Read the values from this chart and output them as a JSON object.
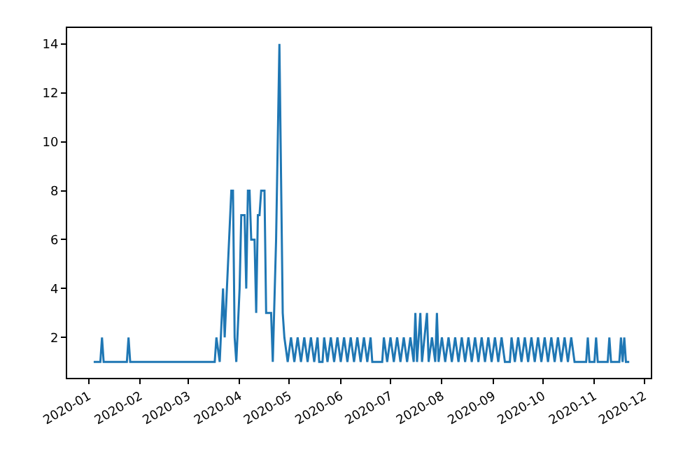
{
  "chart_data": {
    "type": "line",
    "color": "#1f77b4",
    "grid": false,
    "marker": "none",
    "line_style": "solid",
    "x": [
      "2020-01-04",
      "2020-01-08",
      "2020-01-09",
      "2020-01-10",
      "2020-01-24",
      "2020-01-25",
      "2020-01-26",
      "2020-03-17",
      "2020-03-18",
      "2020-03-20",
      "2020-03-22",
      "2020-03-23",
      "2020-03-25",
      "2020-03-27",
      "2020-03-28",
      "2020-03-29",
      "2020-03-30",
      "2020-04-01",
      "2020-04-02",
      "2020-04-04",
      "2020-04-05",
      "2020-04-06",
      "2020-04-07",
      "2020-04-08",
      "2020-04-10",
      "2020-04-11",
      "2020-04-12",
      "2020-04-13",
      "2020-04-14",
      "2020-04-16",
      "2020-04-17",
      "2020-04-20",
      "2020-04-21",
      "2020-04-23",
      "2020-04-25",
      "2020-04-27",
      "2020-04-28",
      "2020-04-30",
      "2020-05-02",
      "2020-05-04",
      "2020-05-06",
      "2020-05-08",
      "2020-05-10",
      "2020-05-12",
      "2020-05-14",
      "2020-05-16",
      "2020-05-18",
      "2020-05-19",
      "2020-05-21",
      "2020-05-22",
      "2020-05-24",
      "2020-05-26",
      "2020-05-28",
      "2020-05-30",
      "2020-06-01",
      "2020-06-03",
      "2020-06-05",
      "2020-06-07",
      "2020-06-09",
      "2020-06-11",
      "2020-06-13",
      "2020-06-15",
      "2020-06-17",
      "2020-06-19",
      "2020-06-20",
      "2020-06-26",
      "2020-06-27",
      "2020-06-29",
      "2020-07-01",
      "2020-07-03",
      "2020-07-05",
      "2020-07-07",
      "2020-07-09",
      "2020-07-11",
      "2020-07-13",
      "2020-07-15",
      "2020-07-16",
      "2020-07-17",
      "2020-07-19",
      "2020-07-20",
      "2020-07-23",
      "2020-07-24",
      "2020-07-26",
      "2020-07-28",
      "2020-07-29",
      "2020-07-30",
      "2020-08-01",
      "2020-08-03",
      "2020-08-05",
      "2020-08-07",
      "2020-08-09",
      "2020-08-11",
      "2020-08-13",
      "2020-08-15",
      "2020-08-17",
      "2020-08-19",
      "2020-08-21",
      "2020-08-23",
      "2020-08-25",
      "2020-08-27",
      "2020-08-29",
      "2020-08-31",
      "2020-09-02",
      "2020-09-04",
      "2020-09-06",
      "2020-09-08",
      "2020-09-11",
      "2020-09-12",
      "2020-09-14",
      "2020-09-16",
      "2020-09-18",
      "2020-09-20",
      "2020-09-22",
      "2020-09-24",
      "2020-09-26",
      "2020-09-28",
      "2020-09-30",
      "2020-10-02",
      "2020-10-04",
      "2020-10-06",
      "2020-10-08",
      "2020-10-10",
      "2020-10-12",
      "2020-10-14",
      "2020-10-16",
      "2020-10-18",
      "2020-10-20",
      "2020-10-27",
      "2020-10-28",
      "2020-10-29",
      "2020-11-01",
      "2020-11-02",
      "2020-11-03",
      "2020-11-09",
      "2020-11-10",
      "2020-11-11",
      "2020-11-16",
      "2020-11-17",
      "2020-11-18",
      "2020-11-19",
      "2020-11-20",
      "2020-11-22"
    ],
    "values": [
      1,
      1,
      2,
      1,
      1,
      2,
      1,
      1,
      2,
      1,
      4,
      2,
      5,
      8,
      8,
      2,
      1,
      4,
      7,
      7,
      4,
      8,
      8,
      6,
      6,
      3,
      7,
      7,
      8,
      8,
      3,
      3,
      1,
      6,
      14,
      3,
      2,
      1,
      2,
      1,
      2,
      1,
      2,
      1,
      2,
      1,
      2,
      1,
      1,
      2,
      1,
      2,
      1,
      2,
      1,
      2,
      1,
      2,
      1,
      2,
      1,
      2,
      1,
      2,
      1,
      1,
      2,
      1,
      2,
      1,
      2,
      1,
      2,
      1,
      2,
      1,
      3,
      1,
      3,
      1,
      3,
      1,
      2,
      1,
      3,
      1,
      2,
      1,
      2,
      1,
      2,
      1,
      2,
      1,
      2,
      1,
      2,
      1,
      2,
      1,
      2,
      1,
      2,
      1,
      2,
      1,
      1,
      2,
      1,
      2,
      1,
      2,
      1,
      2,
      1,
      2,
      1,
      2,
      1,
      2,
      1,
      2,
      1,
      2,
      1,
      2,
      1,
      1,
      2,
      1,
      1,
      2,
      1,
      1,
      2,
      1,
      1,
      2,
      1,
      2,
      1,
      1
    ],
    "xlim": [
      "2019-12-19",
      "2020-12-05"
    ],
    "xticks": [
      {
        "value": "2020-01-01",
        "label": "2020-01"
      },
      {
        "value": "2020-02-01",
        "label": "2020-02"
      },
      {
        "value": "2020-03-01",
        "label": "2020-03"
      },
      {
        "value": "2020-04-01",
        "label": "2020-04"
      },
      {
        "value": "2020-05-01",
        "label": "2020-05"
      },
      {
        "value": "2020-06-01",
        "label": "2020-06"
      },
      {
        "value": "2020-07-01",
        "label": "2020-07"
      },
      {
        "value": "2020-08-01",
        "label": "2020-08"
      },
      {
        "value": "2020-09-01",
        "label": "2020-09"
      },
      {
        "value": "2020-10-01",
        "label": "2020-10"
      },
      {
        "value": "2020-11-01",
        "label": "2020-11"
      },
      {
        "value": "2020-12-01",
        "label": "2020-12"
      }
    ],
    "ylim": [
      0.35,
      14.65
    ],
    "yticks": [
      2,
      4,
      6,
      8,
      10,
      12,
      14
    ]
  }
}
